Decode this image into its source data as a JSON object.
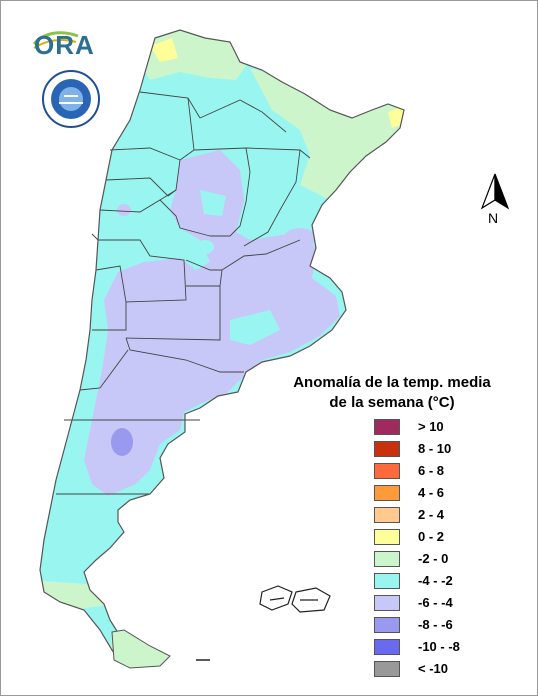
{
  "logo": {
    "text": "ORA"
  },
  "north_arrow": {
    "label": "N"
  },
  "legend": {
    "title_line1": "Anomalía de la temp. media",
    "title_line2": "de la semana (°C)",
    "items": [
      {
        "label": "> 10",
        "color": "#9e2a5e"
      },
      {
        "label": "8 - 10",
        "color": "#c8300e"
      },
      {
        "label": "6 - 8",
        "color": "#ff6a3d"
      },
      {
        "label": "4 - 6",
        "color": "#ff9a3a"
      },
      {
        "label": "2 - 4",
        "color": "#ffc98f"
      },
      {
        "label": "0 - 2",
        "color": "#ffff99"
      },
      {
        "label": "-2 - 0",
        "color": "#ccf5cc"
      },
      {
        "label": "-4 - -2",
        "color": "#99f5f0"
      },
      {
        "label": "-6 - -4",
        "color": "#c8c8f8"
      },
      {
        "label": "-8 - -6",
        "color": "#9999ef"
      },
      {
        "label": "-10 - -8",
        "color": "#6a6aef"
      },
      {
        "label": "< -10",
        "color": "#999999"
      }
    ]
  },
  "map_colors": {
    "cyan": "#99f5f0",
    "lavender": "#c8c8f8",
    "green": "#ccf5cc",
    "yellow": "#ffff99",
    "blue": "#9999ef"
  }
}
